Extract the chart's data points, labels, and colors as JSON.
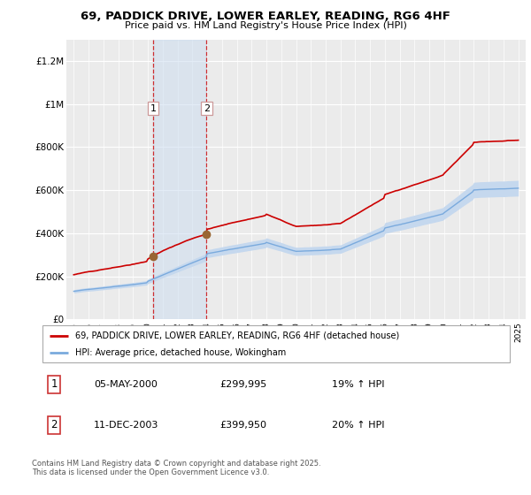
{
  "title": "69, PADDICK DRIVE, LOWER EARLEY, READING, RG6 4HF",
  "subtitle": "Price paid vs. HM Land Registry's House Price Index (HPI)",
  "legend_line1": "69, PADDICK DRIVE, LOWER EARLEY, READING, RG6 4HF (detached house)",
  "legend_line2": "HPI: Average price, detached house, Wokingham",
  "transaction1_date": "05-MAY-2000",
  "transaction1_price": "£299,995",
  "transaction1_hpi": "19% ↑ HPI",
  "transaction2_date": "11-DEC-2003",
  "transaction2_price": "£399,950",
  "transaction2_hpi": "20% ↑ HPI",
  "footer": "Contains HM Land Registry data © Crown copyright and database right 2025.\nThis data is licensed under the Open Government Licence v3.0.",
  "red_line_color": "#cc0000",
  "blue_line_color": "#7aaadd",
  "blue_fill_color": "#c5d8ee",
  "point_color": "#996633",
  "transaction1_x": 2000.35,
  "transaction2_x": 2003.95,
  "ylabel_ticks": [
    "£0",
    "£200K",
    "£400K",
    "£600K",
    "£800K",
    "£1M",
    "£1.2M"
  ],
  "ytick_vals": [
    0,
    200000,
    400000,
    600000,
    800000,
    1000000,
    1200000
  ],
  "ylim": [
    0,
    1300000
  ],
  "xlim": [
    1994.5,
    2025.5
  ]
}
